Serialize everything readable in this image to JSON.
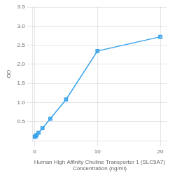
{
  "chart_data": {
    "type": "line",
    "x": [
      0,
      0.156,
      0.313,
      0.625,
      1.25,
      2.5,
      5,
      10,
      20
    ],
    "values": [
      0.105,
      0.118,
      0.148,
      0.21,
      0.33,
      0.58,
      1.08,
      2.35,
      2.72
    ],
    "marker": "square",
    "xlabel": "Human High Affinity Choline Transporter 1 (SLC5A7)\nConcentration (ng/ml)",
    "ylabel": "OD",
    "xlim": [
      -0.3,
      21
    ],
    "ylim": [
      0,
      3.5
    ],
    "xticks": [
      0,
      10,
      20
    ],
    "yticks": [
      0.5,
      {
        "value": 1.0,
        "label": "1.0"
      },
      1.5,
      {
        "value": 2.0,
        "label": "2.0"
      },
      2.5,
      {
        "value": 3.0,
        "label": "3.0"
      },
      3.5
    ],
    "grid": true
  }
}
